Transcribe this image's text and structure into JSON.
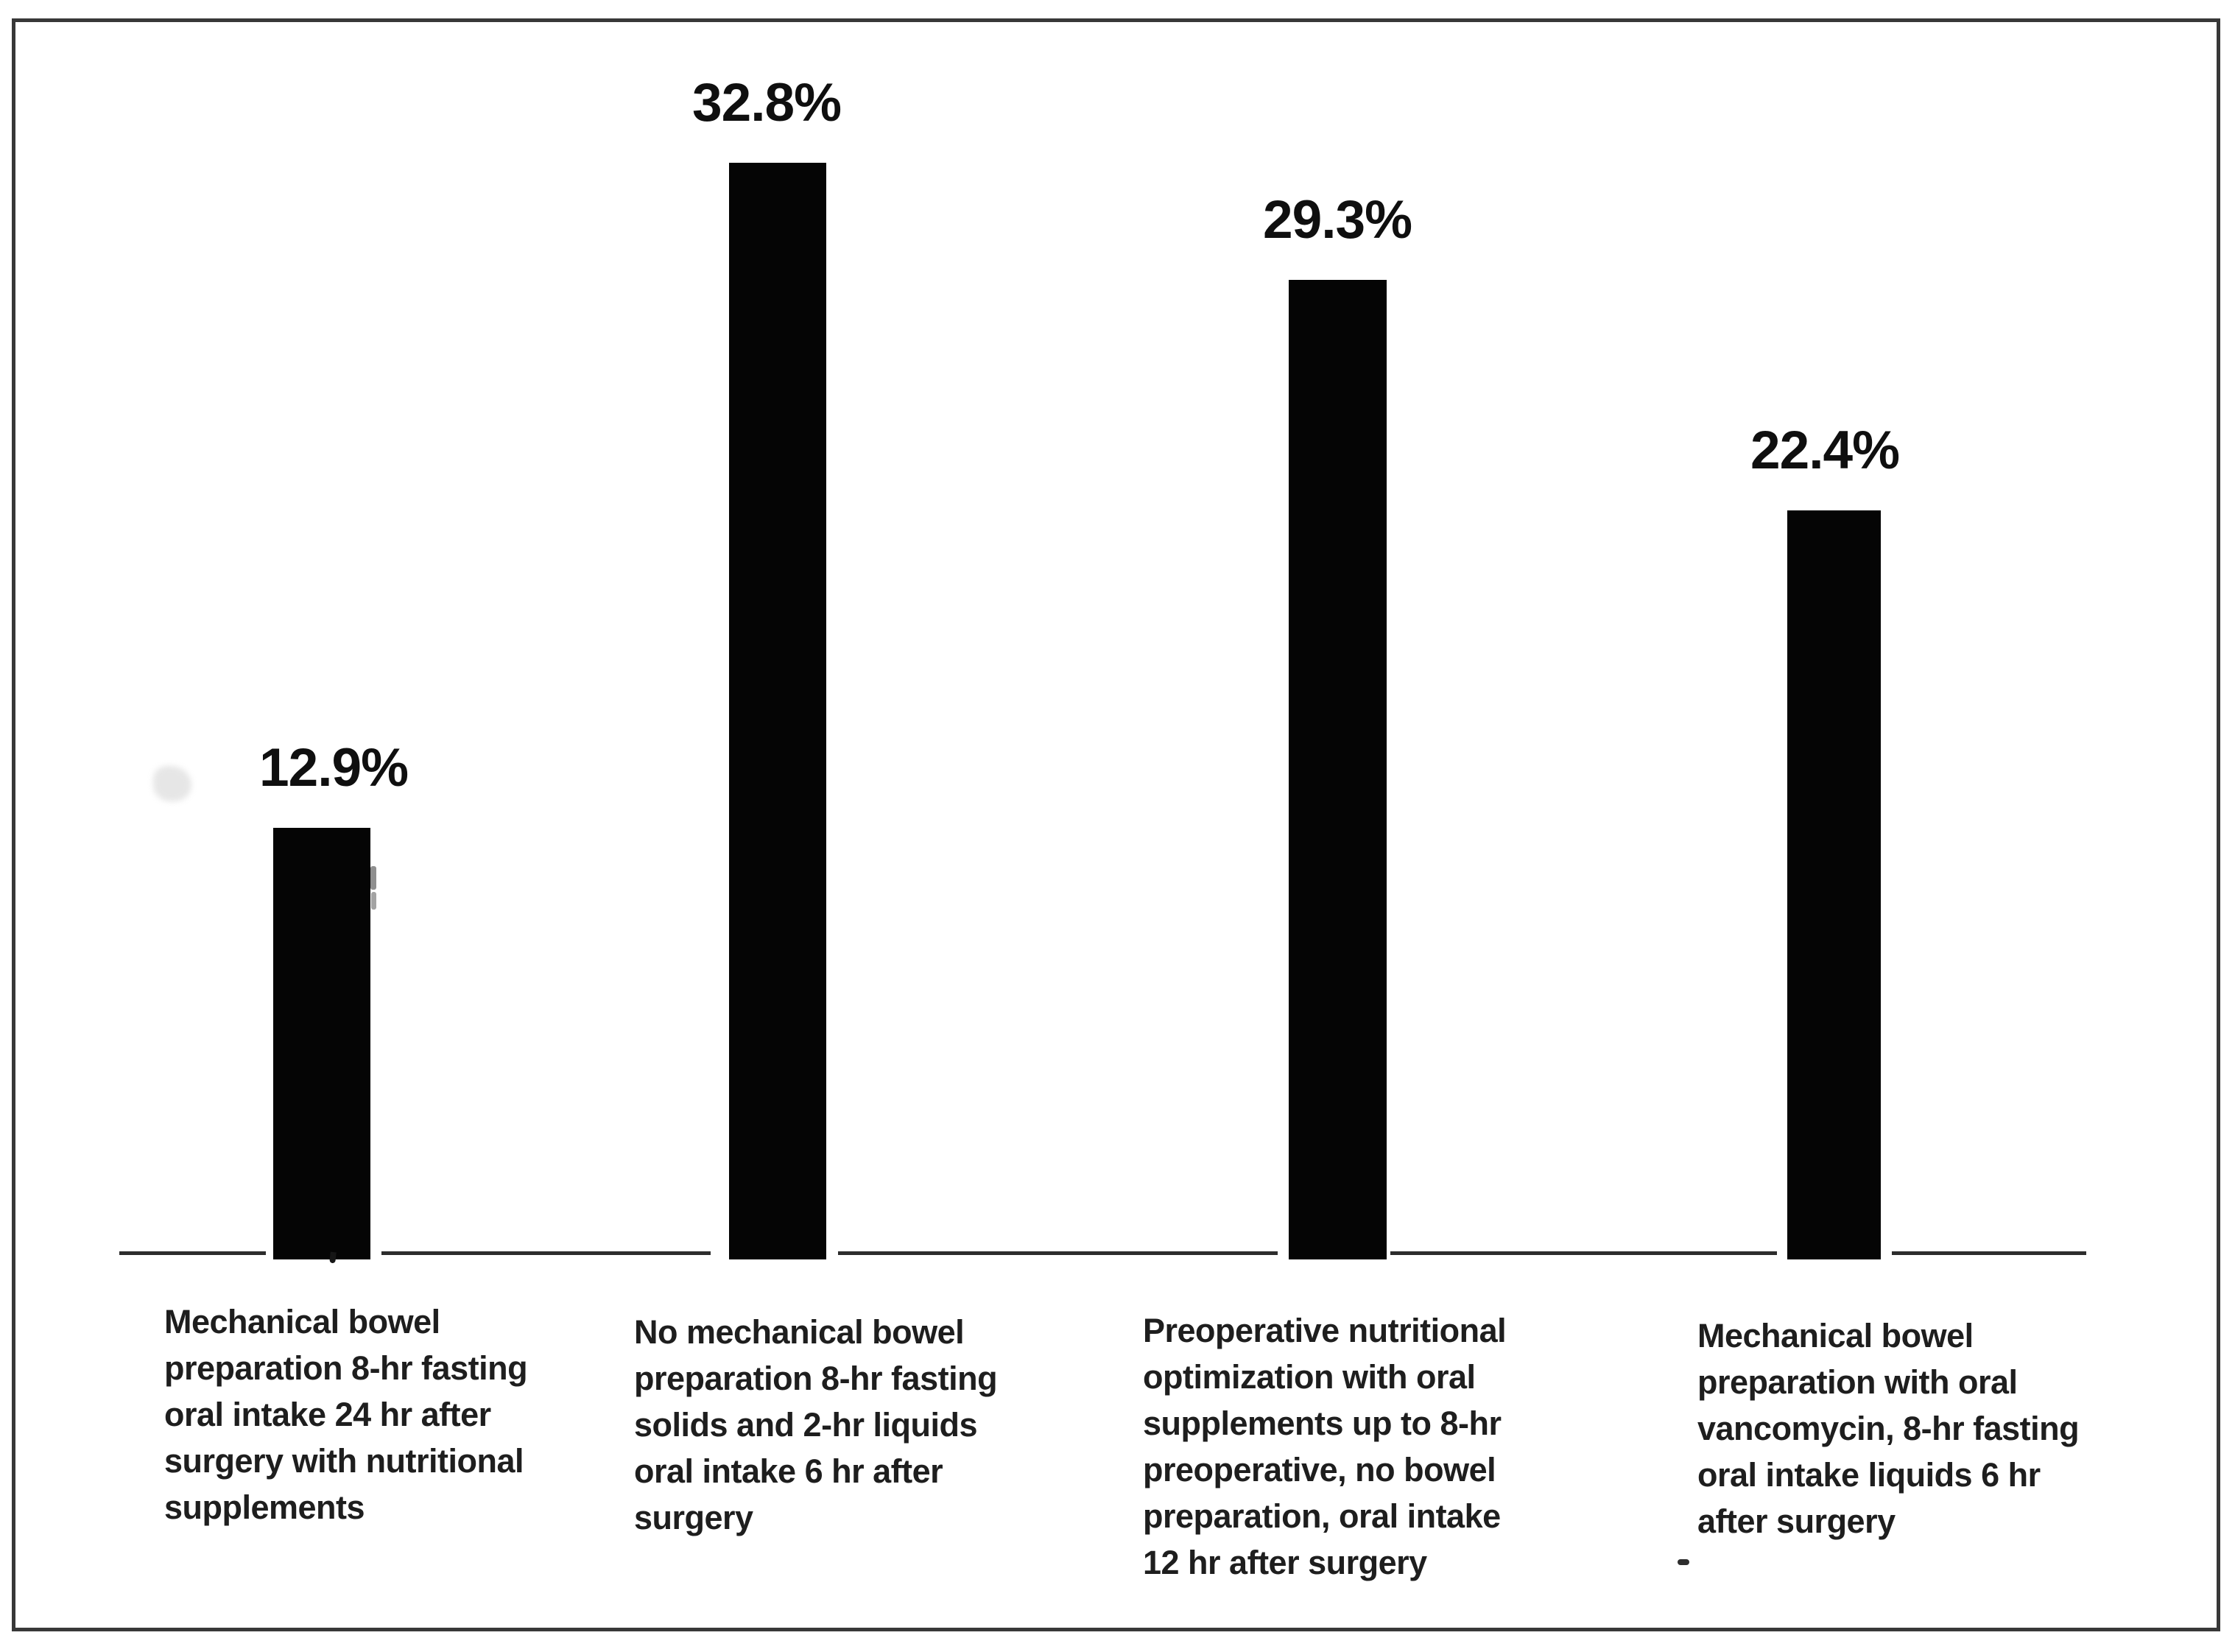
{
  "figure": {
    "background_color": "#ffffff",
    "border_color": "#383838",
    "axis_color": "#2d2d2d",
    "text_color": "#1e1e1e"
  },
  "chart_data": {
    "type": "bar",
    "orientation": "vertical",
    "title": "",
    "xlabel": "",
    "ylabel": "",
    "grid": false,
    "legend": null,
    "ylim": [
      0,
      35
    ],
    "unit": "%",
    "bar_color": "#050505",
    "categories": [
      "Mechanical bowel\npreparation 8-hr fasting\noral intake 24 hr after\nsurgery with nutritional\nsupplements",
      "No mechanical bowel\npreparation 8-hr fasting\nsolids and 2-hr liquids\noral intake 6 hr after\nsurgery",
      "Preoperative nutritional\noptimization with oral\nsupplements up to 8-hr\npreoperative, no bowel\npreparation, oral intake\n12 hr after surgery",
      "Mechanical bowel\npreparation with oral\nvancomycin, 8-hr fasting\noral intake liquids 6 hr\nafter surgery"
    ],
    "values": [
      12.9,
      32.8,
      29.3,
      22.4
    ],
    "data_labels": [
      "12.9%",
      "32.8%",
      "29.3%",
      "22.4%"
    ]
  }
}
